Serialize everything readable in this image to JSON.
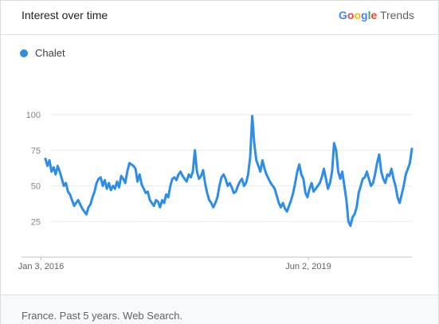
{
  "header": {
    "title": "Interest over time",
    "brand": {
      "google": "Google",
      "trends": "Trends"
    }
  },
  "footer": {
    "text": "France. Past 5 years. Web Search."
  },
  "colors": {
    "series": "#2e8de6",
    "grid": "#e8eaed",
    "axis": "#bdc1c6",
    "google_blue": "#4285f4",
    "google_red": "#ea4335",
    "google_yellow": "#fbbc05",
    "google_green": "#34a853"
  },
  "chart_data": {
    "type": "line",
    "title": "Interest over time",
    "legend_position": "top-left",
    "grid": true,
    "ylim": [
      0,
      100
    ],
    "yticks": [
      25,
      50,
      75,
      100
    ],
    "x_range": [
      "2015-10-04",
      "2020-09-27"
    ],
    "xticks": [
      {
        "date": "2016-01-03",
        "label": "Jan 3, 2016"
      },
      {
        "date": "2019-06-02",
        "label": "Jun 2, 2019"
      }
    ],
    "series": [
      {
        "name": "Chalet",
        "values": [
          69,
          64,
          68,
          60,
          63,
          58,
          64,
          60,
          55,
          50,
          52,
          46,
          44,
          40,
          36,
          38,
          40,
          37,
          34,
          32,
          30,
          35,
          37,
          42,
          46,
          52,
          55,
          56,
          50,
          54,
          48,
          52,
          47,
          50,
          48,
          53,
          49,
          57,
          55,
          52,
          60,
          66,
          65,
          64,
          62,
          53,
          58,
          51,
          48,
          45,
          46,
          40,
          38,
          36,
          40,
          39,
          35,
          40,
          38,
          44,
          42,
          50,
          55,
          56,
          54,
          58,
          60,
          57,
          55,
          53,
          58,
          56,
          60,
          75,
          60,
          55,
          57,
          61,
          52,
          45,
          40,
          38,
          35,
          38,
          42,
          50,
          56,
          58,
          55,
          50,
          52,
          49,
          45,
          46,
          50,
          53,
          55,
          50,
          52,
          58,
          70,
          99,
          80,
          68,
          64,
          60,
          68,
          62,
          58,
          55,
          52,
          50,
          48,
          43,
          38,
          35,
          38,
          34,
          32,
          36,
          40,
          45,
          52,
          60,
          65,
          58,
          55,
          45,
          42,
          48,
          52,
          46,
          48,
          50,
          52,
          56,
          62,
          55,
          48,
          52,
          60,
          80,
          75,
          60,
          55,
          60,
          50,
          40,
          25,
          22,
          28,
          30,
          35,
          45,
          50,
          55,
          56,
          60,
          55,
          50,
          52,
          58,
          66,
          72,
          60,
          55,
          52,
          58,
          57,
          62,
          55,
          50,
          42,
          38,
          44,
          50,
          58,
          62,
          66,
          76
        ]
      }
    ]
  }
}
